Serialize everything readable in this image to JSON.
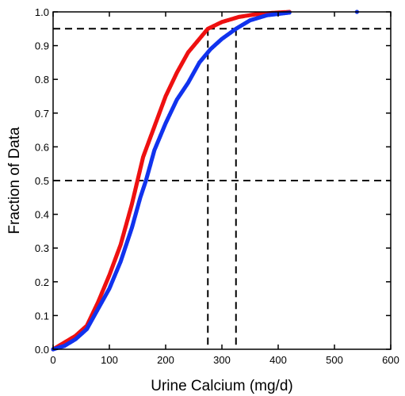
{
  "chart_data": {
    "type": "scatter",
    "title": "",
    "xlabel": "Urine Calcium (mg/d)",
    "ylabel": "Fraction of Data",
    "xlim": [
      0,
      600
    ],
    "ylim": [
      0.0,
      1.0
    ],
    "x_ticks": [
      "0",
      "100",
      "200",
      "300",
      "400",
      "500",
      "600"
    ],
    "y_ticks": [
      "0.0",
      "0.1",
      "0.2",
      "0.3",
      "0.4",
      "0.5",
      "0.6",
      "0.7",
      "0.8",
      "0.9",
      "1.0"
    ],
    "grid": false,
    "legend": "none",
    "reference_lines": {
      "horizontal": [
        0.5,
        0.95
      ],
      "vertical": [
        275,
        325
      ],
      "style": "dashed"
    },
    "series": [
      {
        "color": "#ee1111",
        "points": [
          [
            0,
            0.0
          ],
          [
            20,
            0.02
          ],
          [
            40,
            0.04
          ],
          [
            60,
            0.07
          ],
          [
            80,
            0.14
          ],
          [
            100,
            0.22
          ],
          [
            120,
            0.31
          ],
          [
            140,
            0.43
          ],
          [
            150,
            0.5
          ],
          [
            160,
            0.57
          ],
          [
            180,
            0.66
          ],
          [
            200,
            0.75
          ],
          [
            220,
            0.82
          ],
          [
            240,
            0.88
          ],
          [
            260,
            0.92
          ],
          [
            275,
            0.95
          ],
          [
            300,
            0.97
          ],
          [
            330,
            0.985
          ],
          [
            360,
            0.993
          ],
          [
            390,
            0.997
          ],
          [
            420,
            1.0
          ]
        ]
      },
      {
        "color": "#1133ee",
        "points": [
          [
            0,
            0.0
          ],
          [
            20,
            0.01
          ],
          [
            40,
            0.03
          ],
          [
            60,
            0.06
          ],
          [
            80,
            0.12
          ],
          [
            100,
            0.18
          ],
          [
            120,
            0.26
          ],
          [
            140,
            0.36
          ],
          [
            155,
            0.45
          ],
          [
            165,
            0.5
          ],
          [
            180,
            0.59
          ],
          [
            200,
            0.67
          ],
          [
            220,
            0.74
          ],
          [
            240,
            0.79
          ],
          [
            260,
            0.85
          ],
          [
            280,
            0.89
          ],
          [
            300,
            0.92
          ],
          [
            325,
            0.95
          ],
          [
            350,
            0.975
          ],
          [
            380,
            0.99
          ],
          [
            420,
            0.998
          ],
          [
            540,
            1.0
          ]
        ]
      }
    ]
  }
}
